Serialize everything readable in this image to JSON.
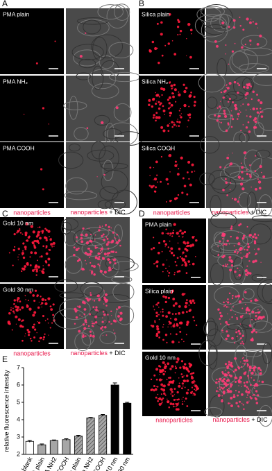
{
  "panels": [
    {
      "label": "A",
      "rows": [
        "PMA plain",
        "PMA NH₂",
        "PMA COOH"
      ],
      "caption_left": "nanoparticles",
      "caption_right": "nanoparticles",
      "caption_suffix": "+ DIC"
    },
    {
      "label": "B",
      "rows": [
        "Silica plain",
        "Silica NH₂",
        "Silica COOH"
      ],
      "caption_left": "nanoparticles",
      "caption_right": "nanoparticles",
      "caption_suffix": "+ DIC"
    },
    {
      "label": "C",
      "rows": [
        "Gold 10 nm",
        "Gold 30 nm"
      ],
      "caption_left": "nanoparticles",
      "caption_right": "nanoparticles",
      "caption_suffix": "+ DIC"
    },
    {
      "label": "D",
      "rows": [
        "PMA plain",
        "Silica plain",
        "Gold 10 nm"
      ],
      "caption_left": "nanoparticles",
      "caption_right": "nanoparticles",
      "caption_suffix": "+ DIC"
    }
  ],
  "chart_data": {
    "type": "bar",
    "panel_label": "E",
    "ylabel": "relative fluorescence intensity",
    "categories": [
      "blank",
      "PMA plain",
      "PMA NH2",
      "PMA COOH",
      "Silica plain",
      "Silica NH2",
      "Silica COOH",
      "Gold 10 nm",
      "Gold 30 nm"
    ],
    "values": [
      2.75,
      2.55,
      2.8,
      2.85,
      3.05,
      4.1,
      4.25,
      6.0,
      4.95
    ],
    "errors": [
      0.05,
      0.05,
      0.03,
      0.05,
      0.05,
      0.03,
      0.05,
      0.12,
      0.05
    ],
    "colors": [
      "#ffffff",
      "#a6a6a6",
      "#a6a6a6",
      "#a6a6a6",
      "#a6a6a6",
      "#a6a6a6",
      "#a6a6a6",
      "#000000",
      "#000000"
    ],
    "hatched": [
      false,
      false,
      false,
      false,
      true,
      true,
      true,
      false,
      false
    ],
    "ylim": [
      2,
      7
    ],
    "yticks": [
      2,
      3,
      4,
      5,
      6,
      7
    ]
  }
}
